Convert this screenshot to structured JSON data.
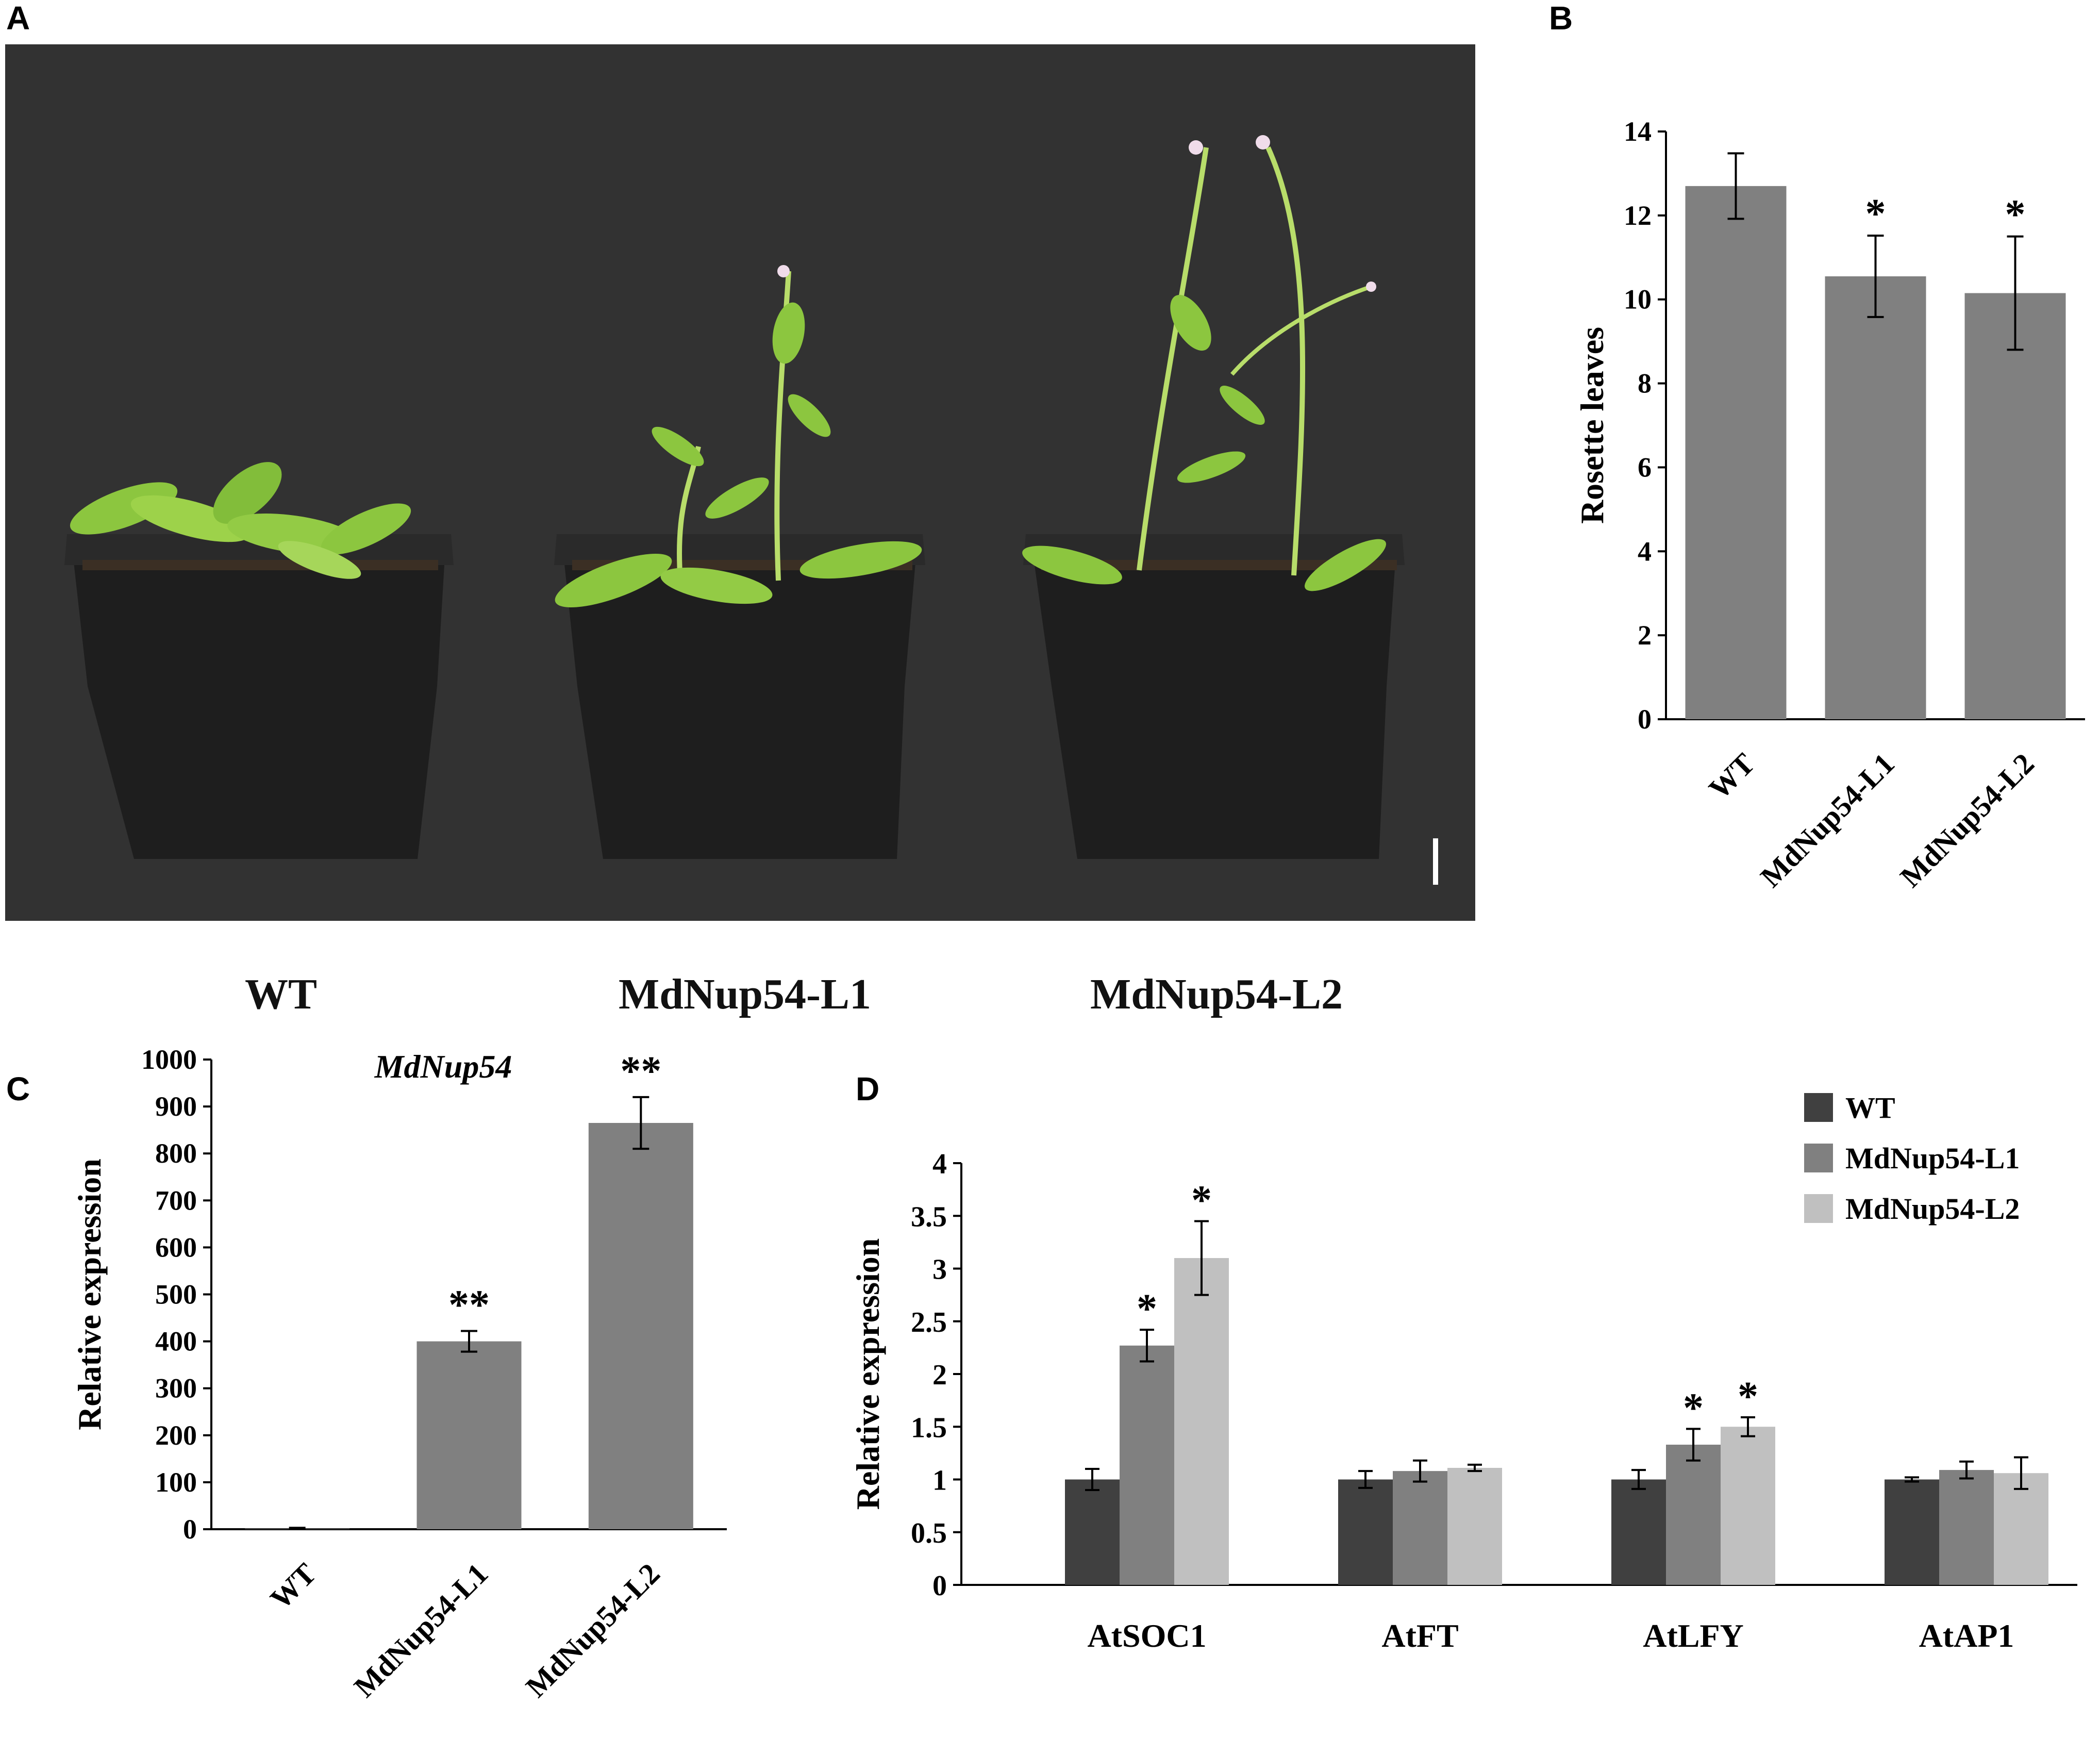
{
  "panel_labels": {
    "a": "A",
    "b": "B",
    "c": "C",
    "d": "D"
  },
  "photo": {
    "captions": [
      "WT",
      "MdNup54-L1",
      "MdNup54-L2"
    ],
    "colors": {
      "background": "#323232",
      "pot": "#1e1e1e",
      "soil": "#4a3c2c",
      "leaf": "#8cc63f",
      "stem": "#b8dd6a",
      "flower": "#f0dcea"
    }
  },
  "chart_data": [
    {
      "id": "B",
      "type": "bar",
      "categories": [
        "WT",
        "MdNup54-L1",
        "MdNup54-L2"
      ],
      "values": [
        12.7,
        10.55,
        10.15
      ],
      "errors": [
        0.78,
        0.97,
        1.35
      ],
      "significance": [
        "",
        "*",
        "*"
      ],
      "ylabel": "Rosette leaves",
      "ylim": [
        0,
        14
      ],
      "yticks": [
        0,
        2,
        4,
        6,
        8,
        10,
        12,
        14
      ],
      "bar_color": "#808080",
      "grid": false
    },
    {
      "id": "C",
      "type": "bar",
      "title": "MdNup54",
      "categories": [
        "WT",
        "MdNup54-L1",
        "MdNup54-L2"
      ],
      "values": [
        1,
        400,
        865
      ],
      "errors": [
        2,
        22,
        55
      ],
      "significance": [
        "",
        "**",
        "**"
      ],
      "ylabel": "Relative expression",
      "ylim": [
        0,
        1000
      ],
      "yticks": [
        0,
        100,
        200,
        300,
        400,
        500,
        600,
        700,
        800,
        900,
        1000
      ],
      "bar_color": "#808080",
      "grid": false
    },
    {
      "id": "D",
      "type": "bar",
      "categories": [
        "AtSOC1",
        "AtFT",
        "AtLFY",
        "AtAP1"
      ],
      "series": [
        {
          "name": "WT",
          "color": "#404040",
          "values": [
            1.0,
            1.0,
            1.0,
            1.0
          ],
          "errors": [
            0.1,
            0.08,
            0.09,
            0.02
          ],
          "significance": [
            "",
            "",
            "",
            ""
          ]
        },
        {
          "name": "MdNup54-L1",
          "color": "#808080",
          "values": [
            2.27,
            1.08,
            1.33,
            1.09
          ],
          "errors": [
            0.15,
            0.1,
            0.15,
            0.08
          ],
          "significance": [
            "*",
            "",
            "*",
            ""
          ]
        },
        {
          "name": "MdNup54-L2",
          "color": "#c0c0c0",
          "values": [
            3.1,
            1.11,
            1.5,
            1.06
          ],
          "errors": [
            0.35,
            0.03,
            0.09,
            0.15
          ],
          "significance": [
            "*",
            "",
            "*",
            ""
          ]
        }
      ],
      "ylabel": "Relative expression",
      "ylim": [
        0,
        4
      ],
      "yticks": [
        "0",
        "0.5",
        "1",
        "1.5",
        "2",
        "2.5",
        "3",
        "3.5",
        "4"
      ],
      "legend_position": "top-right",
      "grid": false
    }
  ]
}
